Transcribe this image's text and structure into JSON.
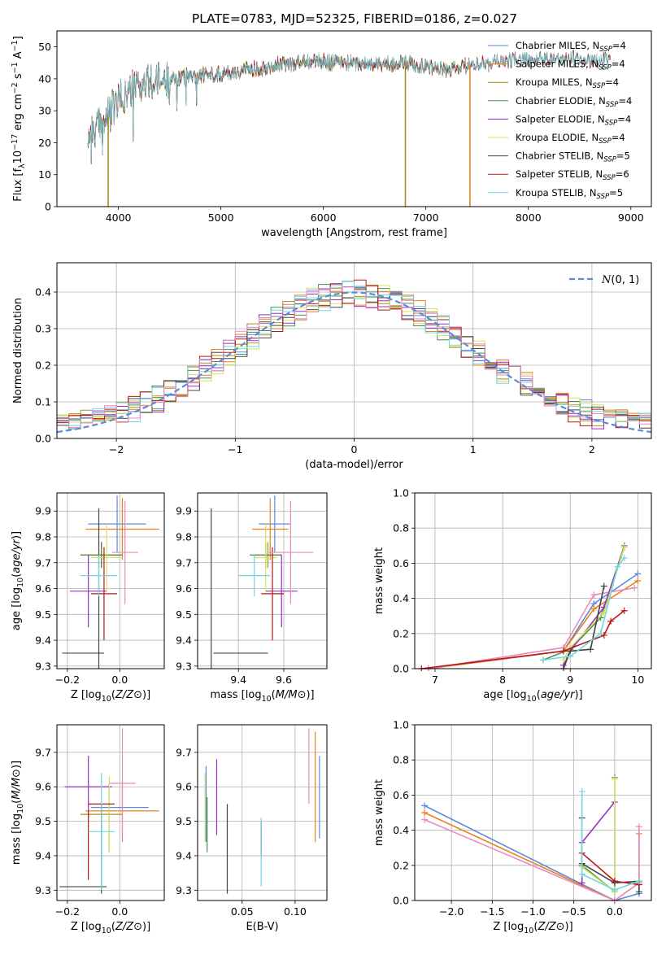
{
  "figure_title": "PLATE=0783, MJD=52325, FIBERID=0186, z=0.027",
  "colors": {
    "Chabrier MILES": "#5b8bd8",
    "Salpeter MILES": "#e8801e",
    "Kroupa MILES": "#a88c1e",
    "Chabrier ELODIE": "#4a8f4a",
    "Salpeter ELODIE": "#9b2fbf",
    "Kroupa ELODIE": "#d8e060",
    "Chabrier STELIB": "#454545",
    "Salpeter STELIB": "#b81818",
    "Kroupa STELIB": "#70d8e0",
    "pink": "#e88ac0",
    "gaussian": "#5b8bd8"
  },
  "chart_data": [
    {
      "id": "spectrum",
      "type": "line",
      "xlabel": "wavelength [Angstrom, rest frame]",
      "ylabel": "Flux [f_λ10^-17 erg cm^-2 s^-1 A^-1]",
      "xlim": [
        3400,
        9200
      ],
      "ylim": [
        0,
        55
      ],
      "xticks": [
        4000,
        5000,
        6000,
        7000,
        8000,
        9000
      ],
      "yticks": [
        0,
        10,
        20,
        30,
        40,
        50
      ],
      "grid": false,
      "legend_position": "top-right",
      "legend": [
        {
          "model": "Chabrier MILES",
          "label": "Chabrier MILES, N",
          "sub": "SSP",
          "tail": "=4"
        },
        {
          "model": "Salpeter MILES",
          "label": "Salpeter MILES, N",
          "sub": "SSP",
          "tail": "=4"
        },
        {
          "model": "Kroupa MILES",
          "label": "Kroupa MILES, N",
          "sub": "SSP",
          "tail": "=4"
        },
        {
          "model": "Chabrier ELODIE",
          "label": "Chabrier ELODIE, N",
          "sub": "SSP",
          "tail": "=4"
        },
        {
          "model": "Salpeter ELODIE",
          "label": "Salpeter ELODIE, N",
          "sub": "SSP",
          "tail": "=4"
        },
        {
          "model": "Kroupa ELODIE",
          "label": "Kroupa ELODIE, N",
          "sub": "SSP",
          "tail": "=4"
        },
        {
          "model": "Chabrier STELIB",
          "label": "Chabrier STELIB, N",
          "sub": "SSP",
          "tail": "=5"
        },
        {
          "model": "Salpeter STELIB",
          "label": "Salpeter STELIB, N",
          "sub": "SSP",
          "tail": "=6"
        },
        {
          "model": "Kroupa STELIB",
          "label": "Kroupa STELIB, N",
          "sub": "SSP",
          "tail": "=5"
        }
      ],
      "continuum": {
        "x": [
          3700,
          3850,
          4000,
          4200,
          4400,
          4700,
          5000,
          5300,
          5600,
          5900,
          6200,
          6500,
          6800,
          7100,
          7200,
          7400,
          7700,
          8000,
          8300,
          8600,
          8800
        ],
        "y": [
          22,
          26,
          33,
          38,
          39,
          41,
          41.5,
          43,
          44.5,
          45.5,
          45,
          44.5,
          45,
          43.5,
          42.5,
          44,
          45.5,
          46,
          46.5,
          46,
          45.5
        ]
      },
      "series_spans": [
        {
          "model": "Chabrier MILES",
          "x": [
            3700,
            7400
          ]
        },
        {
          "model": "Salpeter MILES",
          "x": [
            3700,
            7400
          ]
        },
        {
          "model": "Kroupa MILES",
          "x": [
            3700,
            7400
          ]
        },
        {
          "model": "Chabrier ELODIE",
          "x": [
            3700,
            6800
          ]
        },
        {
          "model": "Salpeter ELODIE",
          "x": [
            3700,
            6800
          ]
        },
        {
          "model": "Kroupa ELODIE",
          "x": [
            3700,
            6800
          ]
        },
        {
          "model": "Chabrier STELIB",
          "x": [
            3700,
            8800
          ]
        },
        {
          "model": "Salpeter STELIB",
          "x": [
            3700,
            8800
          ]
        },
        {
          "model": "Kroupa STELIB",
          "x": [
            3700,
            8800
          ]
        }
      ],
      "drops_to_zero": [
        {
          "model": "Kroupa MILES",
          "x": 3900
        },
        {
          "model": "Kroupa MILES",
          "x": 6800
        },
        {
          "model": "Salpeter MILES",
          "x": 7430
        }
      ]
    },
    {
      "id": "residuals",
      "type": "area",
      "xlabel": "(data-model)/error",
      "ylabel": "Normed distribution",
      "xlim": [
        -2.5,
        2.5
      ],
      "ylim": [
        0,
        0.48
      ],
      "xticks": [
        -2,
        -1,
        0,
        1,
        2
      ],
      "yticks": [
        0.0,
        0.1,
        0.2,
        0.3,
        0.4
      ],
      "grid": true,
      "legend_position": "top-right",
      "gaussian_label": "N(0, 1)",
      "gaussian": {
        "mean": 0,
        "sigma": 1
      },
      "bin_width": 0.1,
      "histograms": [
        "Chabrier MILES",
        "Salpeter MILES",
        "Kroupa MILES",
        "Chabrier ELODIE",
        "Salpeter ELODIE",
        "Kroupa ELODIE",
        "Chabrier STELIB",
        "Salpeter STELIB",
        "Kroupa STELIB",
        "pink"
      ]
    },
    {
      "id": "z-vs-age",
      "type": "scatter",
      "xlabel": "Z [log10(Z/Z⊙)]",
      "ylabel": "age [log10(age/yr)]",
      "xlim": [
        -0.24,
        0.17
      ],
      "ylim": [
        9.29,
        9.97
      ],
      "xticks": [
        -0.2,
        0.0
      ],
      "yticks": [
        9.3,
        9.4,
        9.5,
        9.6,
        9.7,
        9.8,
        9.9
      ],
      "grid": true,
      "points": [
        {
          "model": "Chabrier MILES",
          "x": -0.01,
          "y": 9.85,
          "xerr": 0.11,
          "yerr": 0.11
        },
        {
          "model": "Salpeter MILES",
          "x": 0.01,
          "y": 9.83,
          "xerr": 0.14,
          "yerr": 0.12
        },
        {
          "model": "Kroupa MILES",
          "x": -0.07,
          "y": 9.73,
          "xerr": 0.08,
          "yerr": 0.05
        },
        {
          "model": "Chabrier ELODIE",
          "x": -0.07,
          "y": 9.73,
          "xerr": 0.08,
          "yerr": 0.05
        },
        {
          "model": "Salpeter ELODIE",
          "x": -0.12,
          "y": 9.59,
          "xerr": 0.07,
          "yerr": 0.14
        },
        {
          "model": "Kroupa ELODIE",
          "x": -0.05,
          "y": 9.72,
          "xerr": 0.06,
          "yerr": 0.13
        },
        {
          "model": "Chabrier STELIB",
          "x": -0.14,
          "y": 9.35,
          "xerr": 0.08,
          "yerr": 0.0
        },
        {
          "model": "Chabrier STELIB",
          "x": -0.08,
          "y": 9.35,
          "xerr": 0.0,
          "yerr": 0.56
        },
        {
          "model": "Salpeter STELIB",
          "x": -0.06,
          "y": 9.58,
          "xerr": 0.05,
          "yerr": 0.18
        },
        {
          "model": "Kroupa STELIB",
          "x": -0.08,
          "y": 9.65,
          "xerr": 0.07,
          "yerr": 0.08
        },
        {
          "model": "pink",
          "x": 0.02,
          "y": 9.74,
          "xerr": 0.05,
          "yerr": 0.2
        }
      ]
    },
    {
      "id": "mass-vs-age",
      "type": "scatter",
      "xlabel": "mass [log10(M/M⊙)]",
      "ylabel": "",
      "xlim": [
        9.22,
        9.79
      ],
      "ylim": [
        9.29,
        9.97
      ],
      "xticks": [
        9.4,
        9.6
      ],
      "yticks": [
        9.3,
        9.4,
        9.5,
        9.6,
        9.7,
        9.8,
        9.9
      ],
      "grid": true,
      "points": [
        {
          "model": "Chabrier MILES",
          "x": 9.56,
          "y": 9.85,
          "xerr": 0.07,
          "yerr": 0.11
        },
        {
          "model": "Salpeter MILES",
          "x": 9.54,
          "y": 9.83,
          "xerr": 0.08,
          "yerr": 0.12
        },
        {
          "model": "Kroupa MILES",
          "x": 9.53,
          "y": 9.73,
          "xerr": 0.06,
          "yerr": 0.05
        },
        {
          "model": "Chabrier ELODIE",
          "x": 9.52,
          "y": 9.73,
          "xerr": 0.07,
          "yerr": 0.05
        },
        {
          "model": "Salpeter ELODIE",
          "x": 9.59,
          "y": 9.59,
          "xerr": 0.07,
          "yerr": 0.14
        },
        {
          "model": "Kroupa ELODIE",
          "x": 9.52,
          "y": 9.72,
          "xerr": 0.05,
          "yerr": 0.13
        },
        {
          "model": "Chabrier STELIB",
          "x": 9.41,
          "y": 9.35,
          "xerr": 0.12,
          "yerr": 0.0
        },
        {
          "model": "Chabrier STELIB",
          "x": 9.28,
          "y": 9.35,
          "xerr": 0.0,
          "yerr": 0.56
        },
        {
          "model": "Salpeter STELIB",
          "x": 9.55,
          "y": 9.58,
          "xerr": 0.05,
          "yerr": 0.18
        },
        {
          "model": "Kroupa STELIB",
          "x": 9.47,
          "y": 9.65,
          "xerr": 0.07,
          "yerr": 0.08
        },
        {
          "model": "pink",
          "x": 9.63,
          "y": 9.74,
          "xerr": 0.1,
          "yerr": 0.2
        }
      ]
    },
    {
      "id": "age-weights",
      "type": "line",
      "xlabel": "age [log10(age/yr)]",
      "ylabel": "mass weight",
      "xlim": [
        6.7,
        10.2
      ],
      "ylim": [
        0,
        1
      ],
      "xticks": [
        7,
        8,
        9,
        10
      ],
      "yticks": [
        0.0,
        0.2,
        0.4,
        0.6,
        0.8,
        1.0
      ],
      "grid": true,
      "series": [
        {
          "model": "Chabrier MILES",
          "x": [
            6.9,
            8.9,
            9.35,
            10.0
          ],
          "y": [
            0.0,
            0.1,
            0.37,
            0.54
          ]
        },
        {
          "model": "Salpeter MILES",
          "x": [
            6.9,
            8.9,
            9.35,
            10.0
          ],
          "y": [
            0.0,
            0.1,
            0.34,
            0.5
          ]
        },
        {
          "model": "pink",
          "x": [
            6.9,
            8.9,
            9.35,
            9.95
          ],
          "y": [
            0.0,
            0.12,
            0.42,
            0.46
          ]
        },
        {
          "model": "Chabrier ELODIE",
          "x": [
            8.6,
            9.0,
            9.45,
            9.8
          ],
          "y": [
            0.05,
            0.11,
            0.29,
            0.7
          ]
        },
        {
          "model": "Salpeter ELODIE",
          "x": [
            8.9,
            9.0,
            9.5,
            9.8
          ],
          "y": [
            0.02,
            0.1,
            0.35,
            0.69
          ]
        },
        {
          "model": "Kroupa ELODIE",
          "x": [
            8.9,
            9.0,
            9.5,
            9.8
          ],
          "y": [
            0.05,
            0.12,
            0.32,
            0.69
          ]
        },
        {
          "model": "Chabrier STELIB",
          "x": [
            8.9,
            9.0,
            9.3,
            9.5
          ],
          "y": [
            0.0,
            0.1,
            0.11,
            0.47
          ]
        },
        {
          "model": "Salpeter STELIB",
          "x": [
            6.8,
            8.9,
            9.5,
            9.6,
            9.8
          ],
          "y": [
            0.0,
            0.1,
            0.19,
            0.27,
            0.33
          ]
        },
        {
          "model": "Kroupa STELIB",
          "x": [
            8.6,
            9.0,
            9.45,
            9.7,
            9.8
          ],
          "y": [
            0.05,
            0.07,
            0.2,
            0.58,
            0.63
          ]
        }
      ]
    },
    {
      "id": "z-vs-mass",
      "type": "scatter",
      "xlabel": "Z [log10(Z/Z⊙)]",
      "ylabel": "mass [log10(M/M⊙)]",
      "xlim": [
        -0.24,
        0.17
      ],
      "ylim": [
        9.27,
        9.78
      ],
      "xticks": [
        -0.2,
        0.0
      ],
      "yticks": [
        9.3,
        9.4,
        9.5,
        9.6,
        9.7
      ],
      "grid": true,
      "points": [
        {
          "model": "Chabrier MILES",
          "x": 0.0,
          "y": 9.54,
          "xerr": 0.11,
          "yerr": 0.0
        },
        {
          "model": "Salpeter MILES",
          "x": 0.01,
          "y": 9.53,
          "xerr": 0.14,
          "yerr": 0.09
        },
        {
          "model": "Kroupa MILES",
          "x": -0.07,
          "y": 9.52,
          "xerr": 0.08,
          "yerr": 0.0
        },
        {
          "model": "Chabrier ELODIE",
          "x": -0.04,
          "y": 9.51,
          "xerr": 0.0,
          "yerr": 0.1
        },
        {
          "model": "Salpeter ELODIE",
          "x": -0.12,
          "y": 9.6,
          "xerr": 0.09,
          "yerr": 0.09
        },
        {
          "model": "Kroupa ELODIE",
          "x": -0.04,
          "y": 9.52,
          "xerr": 0.0,
          "yerr": 0.11
        },
        {
          "model": "Chabrier STELIB",
          "x": -0.14,
          "y": 9.31,
          "xerr": 0.09,
          "yerr": 0.0
        },
        {
          "model": "Chabrier STELIB",
          "x": -0.07,
          "y": 9.42,
          "xerr": 0.0,
          "yerr": 0.13
        },
        {
          "model": "Salpeter STELIB",
          "x": -0.07,
          "y": 9.55,
          "xerr": 0.05,
          "yerr": 0.0
        },
        {
          "model": "Salpeter STELIB",
          "x": -0.12,
          "y": 9.43,
          "xerr": 0.0,
          "yerr": 0.1
        },
        {
          "model": "Kroupa STELIB",
          "x": -0.07,
          "y": 9.47,
          "xerr": 0.05,
          "yerr": 0.17
        },
        {
          "model": "pink",
          "x": 0.01,
          "y": 9.61,
          "xerr": 0.05,
          "yerr": 0.16
        }
      ]
    },
    {
      "id": "ebv-vs-mass",
      "type": "scatter",
      "xlabel": "E(B-V)",
      "ylabel": "",
      "xlim": [
        0.008,
        0.13
      ],
      "ylim": [
        9.27,
        9.78
      ],
      "xticks": [
        0.05,
        0.1
      ],
      "yticks": [
        9.3,
        9.4,
        9.5,
        9.6,
        9.7
      ],
      "grid": true,
      "points": [
        {
          "model": "Kroupa ELODIE",
          "x": 0.015,
          "y": 9.54,
          "xerr": 0.0,
          "yerr": 0.1
        },
        {
          "model": "Chabrier MILES",
          "x": 0.016,
          "y": 9.55,
          "xerr": 0.0,
          "yerr": 0.11
        },
        {
          "model": "Chabrier ELODIE",
          "x": 0.017,
          "y": 9.49,
          "xerr": 0.0,
          "yerr": 0.08
        },
        {
          "model": "Salpeter ELODIE",
          "x": 0.026,
          "y": 9.57,
          "xerr": 0.0,
          "yerr": 0.11
        },
        {
          "model": "Chabrier STELIB",
          "x": 0.036,
          "y": 9.42,
          "xerr": 0.0,
          "yerr": 0.13
        },
        {
          "model": "Salpeter STELIB",
          "x": 0.068,
          "y": 9.45,
          "xerr": 0.0,
          "yerr": 0.05
        },
        {
          "model": "Kroupa STELIB",
          "x": 0.068,
          "y": 9.41,
          "xerr": 0.0,
          "yerr": 0.1
        },
        {
          "model": "pink",
          "x": 0.113,
          "y": 9.66,
          "xerr": 0.0,
          "yerr": 0.11
        },
        {
          "model": "Salpeter MILES",
          "x": 0.119,
          "y": 9.6,
          "xerr": 0.0,
          "yerr": 0.16
        },
        {
          "model": "Chabrier MILES",
          "x": 0.123,
          "y": 9.57,
          "xerr": 0.0,
          "yerr": 0.12
        }
      ]
    },
    {
      "id": "z-weights",
      "type": "line",
      "xlabel": "Z [log10(Z/Z⊙)]",
      "ylabel": "mass weight",
      "xlim": [
        -2.45,
        0.45
      ],
      "ylim": [
        0,
        1
      ],
      "xticks": [
        -2.0,
        -1.5,
        -1.0,
        -0.5,
        0.0
      ],
      "yticks": [
        0.0,
        0.2,
        0.4,
        0.6,
        0.8,
        1.0
      ],
      "grid": true,
      "series": [
        {
          "model": "Chabrier MILES",
          "x": [
            -2.33,
            0.0,
            0.3
          ],
          "y": [
            0.54,
            0.0,
            0.04
          ]
        },
        {
          "model": "Salpeter MILES",
          "x": [
            -2.33,
            0.0,
            0.3,
            0.3
          ],
          "y": [
            0.5,
            0.0,
            0.1,
            0.38
          ]
        },
        {
          "model": "pink",
          "x": [
            -2.33,
            0.0,
            0.3,
            0.3
          ],
          "y": [
            0.46,
            0.0,
            0.1,
            0.42
          ]
        },
        {
          "model": "Chabrier ELODIE",
          "x": [
            -0.4,
            0.0,
            0.0
          ],
          "y": [
            0.2,
            0.05,
            0.7
          ]
        },
        {
          "model": "Salpeter ELODIE",
          "x": [
            -0.4,
            -0.4,
            0.0,
            0.0
          ],
          "y": [
            0.1,
            0.33,
            0.56,
            0.11
          ]
        },
        {
          "model": "Kroupa ELODIE",
          "x": [
            -0.4,
            0.0,
            0.0
          ],
          "y": [
            0.19,
            0.05,
            0.69
          ]
        },
        {
          "model": "Chabrier STELIB",
          "x": [
            -0.4,
            -0.4,
            0.0,
            0.3,
            0.3
          ],
          "y": [
            0.47,
            0.21,
            0.1,
            0.11,
            0.05
          ]
        },
        {
          "model": "Salpeter STELIB",
          "x": [
            -0.4,
            0.0,
            0.3
          ],
          "y": [
            0.27,
            0.11,
            0.09
          ]
        },
        {
          "model": "Kroupa STELIB",
          "x": [
            -0.4,
            -0.4,
            0.0,
            0.3
          ],
          "y": [
            0.62,
            0.15,
            0.06,
            0.11
          ]
        }
      ]
    }
  ]
}
